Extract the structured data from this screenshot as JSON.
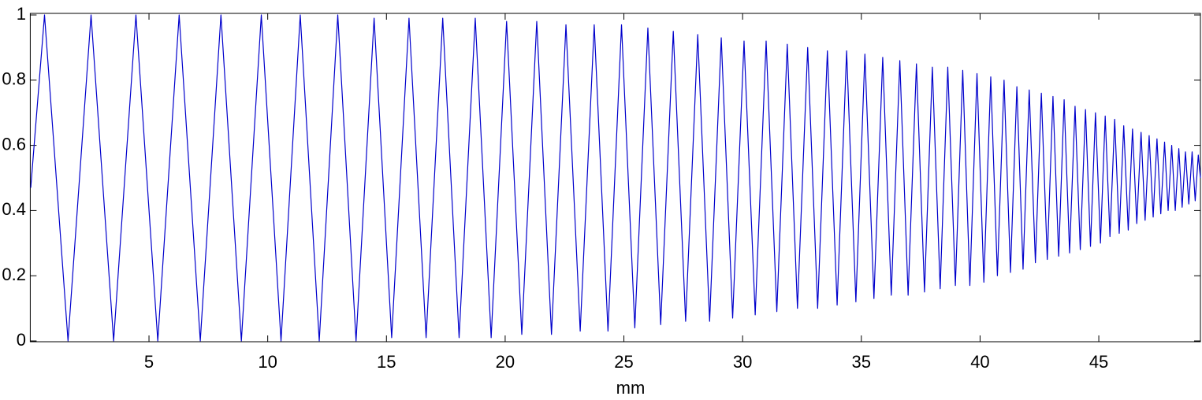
{
  "chart_data": {
    "type": "line",
    "xlabel": "mm",
    "color": "#0000cc",
    "xlim": [
      0,
      49.28
    ],
    "ylim": [
      0,
      1
    ],
    "xticks": [
      5,
      10,
      15,
      20,
      25,
      30,
      35,
      40,
      45
    ],
    "yticks": [
      0,
      0.2,
      0.4,
      0.6,
      0.8,
      1
    ],
    "grid": false,
    "x": [
      0.02,
      0.6,
      1.59,
      2.56,
      3.51,
      4.45,
      5.37,
      6.27,
      7.16,
      8.03,
      8.89,
      9.73,
      10.56,
      11.37,
      12.17,
      12.95,
      13.72,
      14.48,
      15.22,
      15.95,
      16.67,
      17.37,
      18.06,
      18.74,
      19.41,
      20.06,
      20.7,
      21.33,
      21.95,
      22.56,
      23.16,
      23.75,
      24.33,
      24.9,
      25.46,
      26.01,
      26.55,
      27.08,
      27.6,
      28.11,
      28.61,
      29.1,
      29.58,
      30.06,
      30.53,
      30.99,
      31.44,
      31.88,
      32.31,
      32.74,
      33.16,
      33.57,
      33.98,
      34.38,
      34.77,
      35.15,
      35.53,
      35.9,
      36.26,
      36.62,
      36.97,
      37.32,
      37.66,
      37.99,
      38.32,
      38.64,
      38.96,
      39.27,
      39.57,
      39.87,
      40.16,
      40.45,
      40.73,
      41.01,
      41.28,
      41.55,
      41.81,
      42.07,
      42.33,
      42.58,
      42.83,
      43.07,
      43.31,
      43.54,
      43.77,
      44.0,
      44.22,
      44.44,
      44.65,
      44.86,
      45.07,
      45.27,
      45.47,
      45.67,
      45.86,
      46.05,
      46.24,
      46.42,
      46.6,
      46.78,
      46.95,
      47.12,
      47.29,
      47.45,
      47.61,
      47.77,
      47.92,
      48.07,
      48.22,
      48.37,
      48.51,
      48.65,
      48.79,
      48.93,
      49.06,
      49.19,
      49.28
    ],
    "values": [
      0.47,
      1.0,
      0.0,
      1.0,
      0.0,
      1.0,
      0.0,
      1.0,
      0.0,
      1.0,
      0.0,
      1.0,
      0.0,
      1.0,
      0.0,
      1.0,
      0.0,
      0.99,
      0.01,
      0.99,
      0.01,
      0.99,
      0.01,
      0.99,
      0.01,
      0.98,
      0.02,
      0.98,
      0.02,
      0.97,
      0.03,
      0.97,
      0.03,
      0.97,
      0.04,
      0.96,
      0.05,
      0.95,
      0.06,
      0.94,
      0.06,
      0.93,
      0.07,
      0.92,
      0.08,
      0.92,
      0.09,
      0.91,
      0.1,
      0.9,
      0.1,
      0.89,
      0.11,
      0.89,
      0.12,
      0.88,
      0.13,
      0.87,
      0.14,
      0.86,
      0.14,
      0.85,
      0.15,
      0.84,
      0.16,
      0.84,
      0.17,
      0.83,
      0.17,
      0.82,
      0.18,
      0.81,
      0.2,
      0.8,
      0.21,
      0.78,
      0.22,
      0.77,
      0.24,
      0.76,
      0.25,
      0.75,
      0.26,
      0.74,
      0.27,
      0.72,
      0.28,
      0.71,
      0.29,
      0.7,
      0.3,
      0.69,
      0.32,
      0.68,
      0.33,
      0.66,
      0.34,
      0.65,
      0.36,
      0.64,
      0.37,
      0.63,
      0.38,
      0.62,
      0.39,
      0.61,
      0.4,
      0.6,
      0.4,
      0.59,
      0.41,
      0.58,
      0.42,
      0.58,
      0.43,
      0.57,
      0.5
    ]
  }
}
